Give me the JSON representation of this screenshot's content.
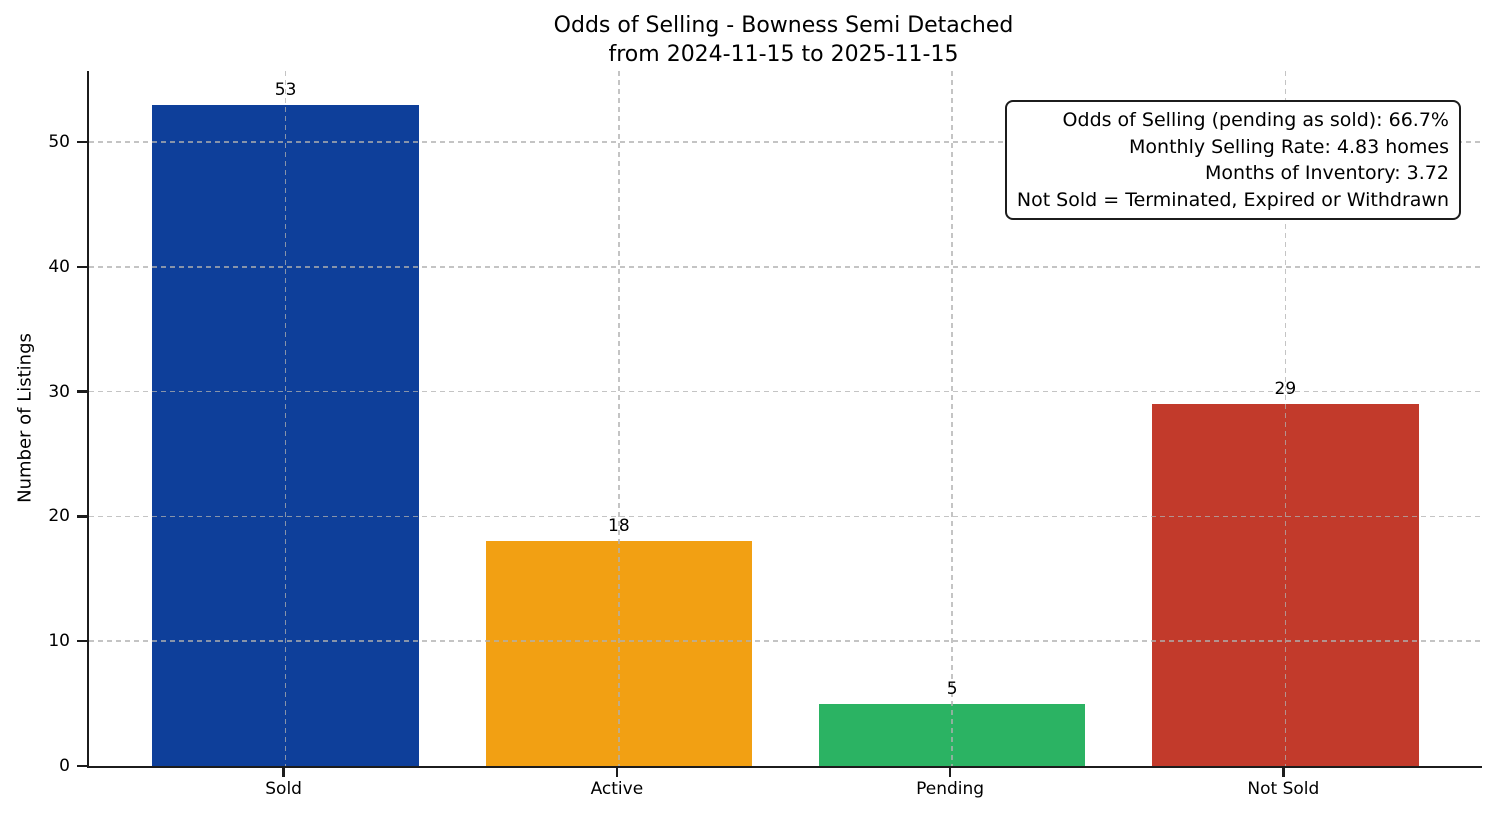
{
  "chart_data": {
    "type": "bar",
    "title_lines": [
      "Odds of Selling - Bowness Semi Detached",
      "from 2024-11-15 to 2025-11-15"
    ],
    "categories": [
      "Sold",
      "Active",
      "Pending",
      "Not Sold"
    ],
    "values": [
      53,
      18,
      5,
      29
    ],
    "bar_colors": [
      "#0e3f9a",
      "#f2a013",
      "#2bb363",
      "#c23a2b"
    ],
    "xlabel": "",
    "ylabel": "Number of Listings",
    "yticks": [
      0,
      10,
      20,
      30,
      40,
      50
    ],
    "ylim": [
      0,
      55.7
    ],
    "xlim": [
      -0.59,
      3.59
    ],
    "grid": true,
    "grid_style": "dashed",
    "legend": "none",
    "annotation": {
      "lines": [
        "Odds of Selling (pending as sold): 66.7%",
        "Monthly Selling Rate: 4.83 homes",
        "Months of Inventory: 3.72",
        "Not Sold = Terminated, Expired or Withdrawn"
      ]
    },
    "colors": {
      "spine": "#1c1c1c",
      "grid": "#b0b0b0",
      "background": "#ffffff",
      "text": "#000000"
    }
  }
}
